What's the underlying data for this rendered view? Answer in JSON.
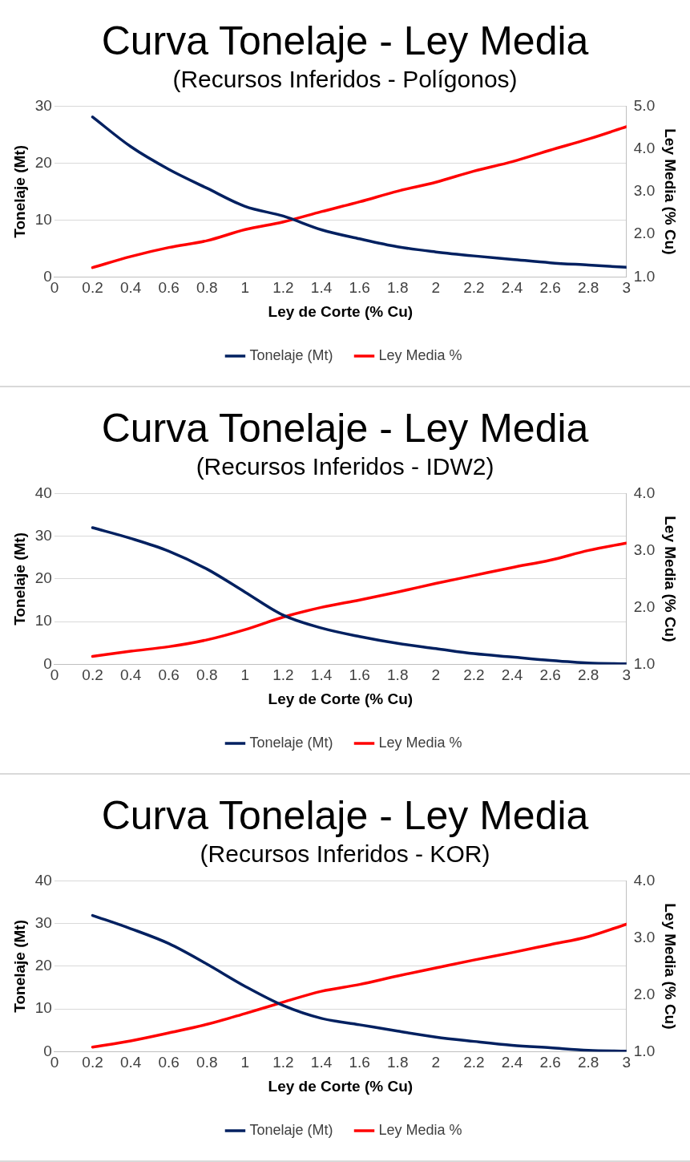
{
  "chart_data": [
    {
      "type": "line",
      "title": "Curva Tonelaje - Ley Media",
      "subtitle": "(Recursos Inferidos - Polígonos)",
      "xlabel": "Ley de Corte (% Cu)",
      "ylabel": "Tonelaje (Mt)",
      "y2label": "Ley Media (% Cu)",
      "x": [
        0.2,
        0.4,
        0.6,
        0.8,
        1,
        1.2,
        1.4,
        1.6,
        1.8,
        2,
        2.2,
        2.4,
        2.6,
        2.8,
        3
      ],
      "series": [
        {
          "name": "Tonelaje (Mt)",
          "color": "#002060",
          "values": [
            28.1,
            22.9,
            18.9,
            15.6,
            12.4,
            10.7,
            8.3,
            6.7,
            5.3,
            4.4,
            3.7,
            3.1,
            2.5,
            2.1,
            1.7
          ]
        },
        {
          "name": "Ley Media %",
          "color": "#ff0000",
          "axis": "y2",
          "values": [
            1.22,
            1.48,
            1.69,
            1.85,
            2.11,
            2.29,
            2.53,
            2.76,
            3.01,
            3.22,
            3.48,
            3.7,
            3.97,
            4.23,
            4.52
          ]
        }
      ],
      "xlim": [
        0,
        3
      ],
      "xticks": [
        0,
        0.2,
        0.4,
        0.6,
        0.8,
        1,
        1.2,
        1.4,
        1.6,
        1.8,
        2,
        2.2,
        2.4,
        2.6,
        2.8,
        3
      ],
      "ylim": [
        0,
        30
      ],
      "yticks": [
        0,
        10,
        20,
        30
      ],
      "y2lim": [
        1,
        5
      ],
      "y2ticks": [
        {
          "value": 1,
          "label": "1.0"
        },
        {
          "value": 2,
          "label": "2.0"
        },
        {
          "value": 3,
          "label": "3.0"
        },
        {
          "value": 4,
          "label": "4.0"
        },
        {
          "value": 5,
          "label": "5.0"
        }
      ],
      "grid": "y",
      "legend": "bottom",
      "marker": "none",
      "line_style": "solid"
    },
    {
      "type": "line",
      "title": "Curva Tonelaje - Ley Media",
      "subtitle": "(Recursos Inferidos - IDW2)",
      "xlabel": "Ley de Corte (% Cu)",
      "ylabel": "Tonelaje (Mt)",
      "y2label": "Ley Media (% Cu)",
      "x": [
        0.2,
        0.4,
        0.6,
        0.8,
        1,
        1.2,
        1.4,
        1.6,
        1.8,
        2,
        2.2,
        2.4,
        2.6,
        2.8,
        3
      ],
      "series": [
        {
          "name": "Tonelaje (Mt)",
          "color": "#002060",
          "values": [
            32,
            29.5,
            26.5,
            22.3,
            16.9,
            11.5,
            8.5,
            6.5,
            4.9,
            3.7,
            2.5,
            1.7,
            0.9,
            0.3,
            0.1
          ]
        },
        {
          "name": "Ley Media %",
          "color": "#ff0000",
          "axis": "y2",
          "values": [
            1.14,
            1.23,
            1.31,
            1.43,
            1.61,
            1.83,
            2,
            2.13,
            2.27,
            2.42,
            2.56,
            2.7,
            2.83,
            3,
            3.13
          ]
        }
      ],
      "xlim": [
        0,
        3
      ],
      "xticks": [
        0,
        0.2,
        0.4,
        0.6,
        0.8,
        1,
        1.2,
        1.4,
        1.6,
        1.8,
        2,
        2.2,
        2.4,
        2.6,
        2.8,
        3
      ],
      "ylim": [
        0,
        40
      ],
      "yticks": [
        0,
        10,
        20,
        30,
        40
      ],
      "y2lim": [
        1,
        4
      ],
      "y2ticks": [
        {
          "value": 1,
          "label": "1.0"
        },
        {
          "value": 2,
          "label": "2.0"
        },
        {
          "value": 3,
          "label": "3.0"
        },
        {
          "value": 4,
          "label": "4.0"
        }
      ],
      "grid": "y",
      "legend": "bottom",
      "marker": "none",
      "line_style": "solid"
    },
    {
      "type": "line",
      "title": "Curva Tonelaje - Ley Media",
      "subtitle": "(Recursos Inferidos - KOR)",
      "xlabel": "Ley de Corte (% Cu)",
      "ylabel": "Tonelaje (Mt)",
      "y2label": "Ley Media (% Cu)",
      "x": [
        0.2,
        0.4,
        0.6,
        0.8,
        1,
        1.2,
        1.4,
        1.6,
        1.8,
        2,
        2.2,
        2.4,
        2.6,
        2.8,
        3
      ],
      "series": [
        {
          "name": "Tonelaje (Mt)",
          "color": "#002060",
          "values": [
            31.9,
            28.8,
            25.3,
            20.5,
            15.3,
            10.8,
            7.8,
            6.3,
            4.8,
            3.4,
            2.4,
            1.5,
            0.9,
            0.3,
            0.1
          ]
        },
        {
          "name": "Ley Media %",
          "color": "#ff0000",
          "axis": "y2",
          "values": [
            1.08,
            1.19,
            1.33,
            1.48,
            1.67,
            1.87,
            2.06,
            2.18,
            2.33,
            2.47,
            2.61,
            2.74,
            2.88,
            3.02,
            3.24
          ]
        }
      ],
      "xlim": [
        0,
        3
      ],
      "xticks": [
        0,
        0.2,
        0.4,
        0.6,
        0.8,
        1,
        1.2,
        1.4,
        1.6,
        1.8,
        2,
        2.2,
        2.4,
        2.6,
        2.8,
        3
      ],
      "ylim": [
        0,
        40
      ],
      "yticks": [
        0,
        10,
        20,
        30,
        40
      ],
      "y2lim": [
        1,
        4
      ],
      "y2ticks": [
        {
          "value": 1,
          "label": "1.0"
        },
        {
          "value": 2,
          "label": "2.0"
        },
        {
          "value": 3,
          "label": "3.0"
        },
        {
          "value": 4,
          "label": "4.0"
        }
      ],
      "grid": "y",
      "legend": "bottom",
      "marker": "none",
      "line_style": "solid"
    }
  ]
}
